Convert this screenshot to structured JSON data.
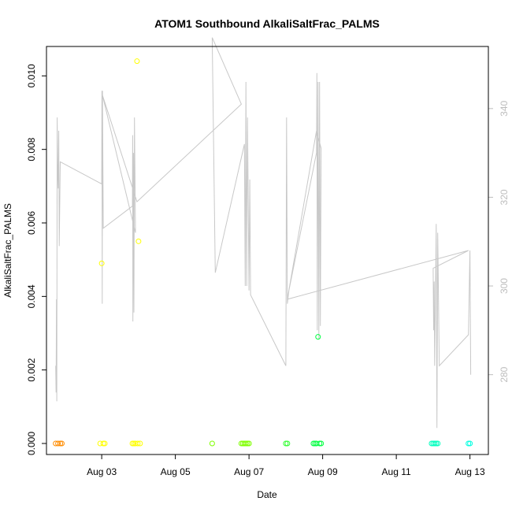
{
  "chart_data": {
    "type": "scatter",
    "title": "ATOM1 Southbound AlkaliSaltFrac_PALMS",
    "xlabel": "Date",
    "ylabel": "AlkaliSaltFrac_PALMS",
    "xlim": [
      "2016-08-01 12:00",
      "2016-08-13 12:00"
    ],
    "ylim": [
      -0.0003,
      0.0108
    ],
    "y_ticks": [
      0.0,
      0.002,
      0.004,
      0.006,
      0.008,
      0.01
    ],
    "y_tick_labels": [
      "0.000",
      "0.002",
      "0.004",
      "0.006",
      "0.008",
      "0.010"
    ],
    "x_ticks": [
      "2016-08-03",
      "2016-08-05",
      "2016-08-07",
      "2016-08-09",
      "2016-08-11",
      "2016-08-13"
    ],
    "x_tick_labels": [
      "Aug 03",
      "Aug 05",
      "Aug 07",
      "Aug 09",
      "Aug 11",
      "Aug 13"
    ],
    "y2lim": [
      262,
      354
    ],
    "y2_ticks": [
      280,
      300,
      320,
      340
    ],
    "y2_tick_labels": [
      "280",
      "300",
      "320",
      "340"
    ],
    "line_color": "#c8c8c8",
    "grid": false,
    "series": [
      {
        "marker": "open-circle",
        "points": [
          {
            "x": "2016-08-01 18:00",
            "y": 0.0,
            "color": "#ff8c00"
          },
          {
            "x": "2016-08-01 19:30",
            "y": 0.0,
            "color": "#ff8c00"
          },
          {
            "x": "2016-08-01 21:00",
            "y": 0.0,
            "color": "#ff8c00"
          },
          {
            "x": "2016-08-01 22:00",
            "y": 0.0,
            "color": "#ff8c00"
          },
          {
            "x": "2016-08-02 23:00",
            "y": 0.0,
            "color": "#ffff00"
          },
          {
            "x": "2016-08-03 00:00",
            "y": 0.0049,
            "color": "#ffff00"
          },
          {
            "x": "2016-08-03 01:00",
            "y": 0.0,
            "color": "#ffff00"
          },
          {
            "x": "2016-08-03 02:00",
            "y": 0.0,
            "color": "#ffff00"
          },
          {
            "x": "2016-08-03 20:00",
            "y": 0.0,
            "color": "#ffff00"
          },
          {
            "x": "2016-08-03 21:00",
            "y": 0.0,
            "color": "#ffff00"
          },
          {
            "x": "2016-08-03 22:00",
            "y": 0.0,
            "color": "#ffff00"
          },
          {
            "x": "2016-08-03 23:00",
            "y": 0.0104,
            "color": "#ffff00"
          },
          {
            "x": "2016-08-03 23:30",
            "y": 0.0,
            "color": "#ffff00"
          },
          {
            "x": "2016-08-04 00:00",
            "y": 0.0055,
            "color": "#ffff00"
          },
          {
            "x": "2016-08-04 01:00",
            "y": 0.0,
            "color": "#ffff00"
          },
          {
            "x": "2016-08-06 00:00",
            "y": 0.0,
            "color": "#7fff00"
          },
          {
            "x": "2016-08-06 19:00",
            "y": 0.0,
            "color": "#7fff00"
          },
          {
            "x": "2016-08-06 20:00",
            "y": 0.0,
            "color": "#7fff00"
          },
          {
            "x": "2016-08-06 21:00",
            "y": 0.0,
            "color": "#7fff00"
          },
          {
            "x": "2016-08-06 22:00",
            "y": 0.0,
            "color": "#7fff00"
          },
          {
            "x": "2016-08-06 23:00",
            "y": 0.0,
            "color": "#7fff00"
          },
          {
            "x": "2016-08-07 00:00",
            "y": 0.0,
            "color": "#7fff00"
          },
          {
            "x": "2016-08-08 00:00",
            "y": 0.0,
            "color": "#33ff33"
          },
          {
            "x": "2016-08-08 01:00",
            "y": 0.0,
            "color": "#33ff33"
          },
          {
            "x": "2016-08-08 18:00",
            "y": 0.0,
            "color": "#00ff40"
          },
          {
            "x": "2016-08-08 19:00",
            "y": 0.0,
            "color": "#00ff40"
          },
          {
            "x": "2016-08-08 20:00",
            "y": 0.0,
            "color": "#00ff40"
          },
          {
            "x": "2016-08-08 21:00",
            "y": 0.0029,
            "color": "#00ff40"
          },
          {
            "x": "2016-08-08 22:00",
            "y": 0.0,
            "color": "#00ff40"
          },
          {
            "x": "2016-08-08 23:00",
            "y": 0.0,
            "color": "#00ff40"
          },
          {
            "x": "2016-08-11 23:00",
            "y": 0.0,
            "color": "#00ffbf"
          },
          {
            "x": "2016-08-12 00:00",
            "y": 0.0,
            "color": "#00ffbf"
          },
          {
            "x": "2016-08-12 01:00",
            "y": 0.0,
            "color": "#00ffbf"
          },
          {
            "x": "2016-08-12 02:00",
            "y": 0.0,
            "color": "#00ffbf"
          },
          {
            "x": "2016-08-12 03:00",
            "y": 0.0,
            "color": "#00ffbf"
          },
          {
            "x": "2016-08-12 23:00",
            "y": 0.0,
            "color": "#00ffe0"
          },
          {
            "x": "2016-08-13 00:00",
            "y": 0.0,
            "color": "#00ffe0"
          }
        ]
      },
      {
        "axis": "right",
        "style": "line",
        "points": [
          {
            "x": "2016-08-01 18:00",
            "y": 282
          },
          {
            "x": "2016-08-01 18:15",
            "y": 276
          },
          {
            "x": "2016-08-01 18:30",
            "y": 297
          },
          {
            "x": "2016-08-01 18:45",
            "y": 274
          },
          {
            "x": "2016-08-01 19:00",
            "y": 338
          },
          {
            "x": "2016-08-01 19:20",
            "y": 325
          },
          {
            "x": "2016-08-01 19:40",
            "y": 322
          },
          {
            "x": "2016-08-01 20:00",
            "y": 335
          },
          {
            "x": "2016-08-01 20:20",
            "y": 309
          },
          {
            "x": "2016-08-01 21:00",
            "y": 328
          },
          {
            "x": "2016-08-03 00:00",
            "y": 323
          },
          {
            "x": "2016-08-03 00:10",
            "y": 344
          },
          {
            "x": "2016-08-03 00:20",
            "y": 296
          },
          {
            "x": "2016-08-03 00:30",
            "y": 344
          },
          {
            "x": "2016-08-03 01:00",
            "y": 313
          },
          {
            "x": "2016-08-03 20:00",
            "y": 318
          },
          {
            "x": "2016-08-03 20:10",
            "y": 334
          },
          {
            "x": "2016-08-03 20:20",
            "y": 292
          },
          {
            "x": "2016-08-03 20:40",
            "y": 330
          },
          {
            "x": "2016-08-03 21:00",
            "y": 294
          },
          {
            "x": "2016-08-03 21:20",
            "y": 338
          },
          {
            "x": "2016-08-03 22:00",
            "y": 312
          },
          {
            "x": "2016-08-03 00:30",
            "y": 343
          },
          {
            "x": "2016-08-03 23:00",
            "y": 319
          },
          {
            "x": "2016-08-06 19:00",
            "y": 341
          },
          {
            "x": "2016-08-06 00:00",
            "y": 356
          },
          {
            "x": "2016-08-06 02:00",
            "y": 303
          },
          {
            "x": "2016-08-06 21:00",
            "y": 332
          },
          {
            "x": "2016-08-06 21:30",
            "y": 300
          },
          {
            "x": "2016-08-06 22:00",
            "y": 346
          },
          {
            "x": "2016-08-06 22:30",
            "y": 300
          },
          {
            "x": "2016-08-06 23:00",
            "y": 338
          },
          {
            "x": "2016-08-07 00:00",
            "y": 299
          },
          {
            "x": "2016-08-07 00:30",
            "y": 324
          },
          {
            "x": "2016-08-07 01:00",
            "y": 298
          },
          {
            "x": "2016-08-08 00:00",
            "y": 282
          },
          {
            "x": "2016-08-08 00:30",
            "y": 338
          },
          {
            "x": "2016-08-08 01:00",
            "y": 296
          },
          {
            "x": "2016-08-08 02:00",
            "y": 299
          },
          {
            "x": "2016-08-08 20:00",
            "y": 330
          },
          {
            "x": "2016-08-08 20:15",
            "y": 348
          },
          {
            "x": "2016-08-08 20:30",
            "y": 290
          },
          {
            "x": "2016-08-08 21:00",
            "y": 346
          },
          {
            "x": "2016-08-08 21:30",
            "y": 288
          },
          {
            "x": "2016-08-08 22:00",
            "y": 346
          },
          {
            "x": "2016-08-08 22:30",
            "y": 291
          },
          {
            "x": "2016-08-08 23:00",
            "y": 331
          },
          {
            "x": "2016-08-08 20:00",
            "y": 335
          },
          {
            "x": "2016-08-08 01:00",
            "y": 297
          },
          {
            "x": "2016-08-12 23:00",
            "y": 308
          },
          {
            "x": "2016-08-12 00:00",
            "y": 304
          },
          {
            "x": "2016-08-12 00:20",
            "y": 290
          },
          {
            "x": "2016-08-12 00:40",
            "y": 301
          },
          {
            "x": "2016-08-12 01:00",
            "y": 282
          },
          {
            "x": "2016-08-12 02:00",
            "y": 314
          },
          {
            "x": "2016-08-12 02:30",
            "y": 268
          },
          {
            "x": "2016-08-12 03:00",
            "y": 312
          },
          {
            "x": "2016-08-12 04:00",
            "y": 282
          },
          {
            "x": "2016-08-12 23:00",
            "y": 289
          },
          {
            "x": "2016-08-13 00:00",
            "y": 308
          },
          {
            "x": "2016-08-13 00:30",
            "y": 280
          }
        ]
      }
    ]
  }
}
